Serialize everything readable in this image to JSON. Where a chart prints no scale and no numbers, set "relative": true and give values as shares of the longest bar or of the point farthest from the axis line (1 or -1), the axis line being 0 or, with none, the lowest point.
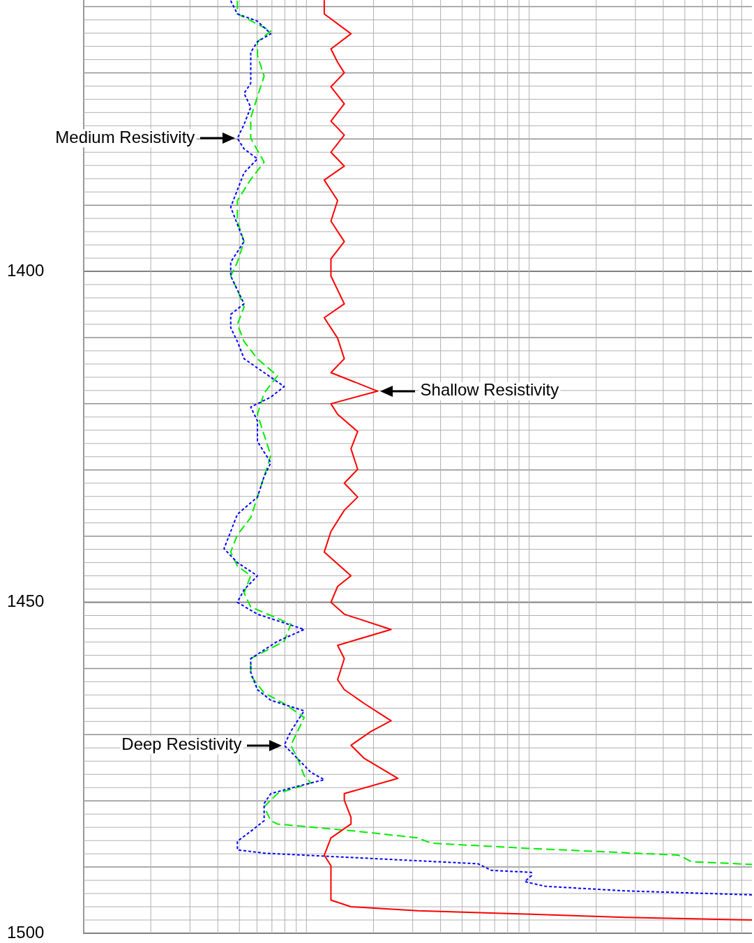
{
  "chart_data": {
    "type": "line",
    "orientation": "horizontal",
    "relative": true,
    "ylim": [
      1500,
      1359
    ],
    "yticks": [
      1400,
      1450,
      1500
    ],
    "grid": true,
    "legend": false,
    "marker": "none",
    "annotations": [
      {
        "text": "Medium Resistivity",
        "x": 0.23,
        "y": 1379.9
      },
      {
        "text": "Shallow Resistivity",
        "x": 0.44,
        "y": 1418.1
      },
      {
        "text": "Deep Resistivity",
        "x": 0.3,
        "y": 1471.6
      }
    ],
    "series": [
      {
        "color": "#ff0000",
        "line_style": "solid",
        "x": [
          1359.1,
          1361.1,
          1364.1,
          1366.4,
          1368.4,
          1370.0,
          1372.1,
          1374.7,
          1377.3,
          1379.4,
          1382.0,
          1384.1,
          1386.2,
          1389.3,
          1392.4,
          1395.5,
          1398.1,
          1400.7,
          1404.9,
          1407.0,
          1410.1,
          1413.2,
          1415.3,
          1418.1,
          1420.0,
          1421.6,
          1424.2,
          1426.8,
          1429.9,
          1432.0,
          1434.1,
          1436.1,
          1439.3,
          1442.4,
          1446.0,
          1447.6,
          1450.0,
          1451.8,
          1454.1,
          1456.5,
          1458.5,
          1461.7,
          1463.2,
          1465.3,
          1467.9,
          1469.5,
          1471.6,
          1473.6,
          1476.6,
          1478.9,
          1479.9,
          1482.5,
          1483.5,
          1485.6,
          1488.2,
          1489.8,
          1491.9,
          1493.4,
          1495.0,
          1496.0,
          1496.6,
          1497.1,
          1497.6,
          1498.0
        ],
        "values": [
          0.36,
          0.36,
          0.4,
          0.37,
          0.38,
          0.39,
          0.37,
          0.39,
          0.37,
          0.39,
          0.37,
          0.39,
          0.36,
          0.38,
          0.37,
          0.39,
          0.37,
          0.37,
          0.39,
          0.36,
          0.38,
          0.39,
          0.37,
          0.44,
          0.37,
          0.38,
          0.41,
          0.4,
          0.41,
          0.39,
          0.41,
          0.39,
          0.37,
          0.36,
          0.4,
          0.38,
          0.37,
          0.39,
          0.46,
          0.38,
          0.39,
          0.38,
          0.39,
          0.42,
          0.46,
          0.43,
          0.4,
          0.42,
          0.47,
          0.39,
          0.39,
          0.4,
          0.4,
          0.37,
          0.36,
          0.37,
          0.37,
          0.37,
          0.37,
          0.4,
          0.5,
          0.66,
          0.81,
          1.0
        ]
      },
      {
        "color": "#0000ff",
        "line_style": "dotted",
        "x": [
          1359.1,
          1361.1,
          1362.2,
          1364.1,
          1365.3,
          1366.9,
          1369.5,
          1371.6,
          1373.1,
          1375.2,
          1377.8,
          1379.9,
          1381.5,
          1383.0,
          1385.1,
          1387.7,
          1390.3,
          1392.9,
          1395.5,
          1398.6,
          1400.7,
          1402.8,
          1404.9,
          1406.5,
          1408.5,
          1410.6,
          1413.2,
          1415.3,
          1417.4,
          1419.0,
          1420.5,
          1422.6,
          1425.7,
          1428.9,
          1431.0,
          1434.1,
          1436.7,
          1439.3,
          1441.9,
          1444.0,
          1446.0,
          1448.1,
          1450.0,
          1451.8,
          1454.1,
          1455.9,
          1458.5,
          1460.6,
          1463.2,
          1464.8,
          1466.4,
          1467.9,
          1469.5,
          1471.6,
          1473.6,
          1475.7,
          1476.8,
          1477.8,
          1478.9,
          1480.4,
          1483.0,
          1484.6,
          1486.1,
          1487.4,
          1487.9,
          1488.7,
          1489.5,
          1490.5,
          1490.8,
          1491.3,
          1492.2,
          1492.9,
          1493.6,
          1494.2
        ],
        "values": [
          0.22,
          0.23,
          0.26,
          0.28,
          0.26,
          0.25,
          0.25,
          0.25,
          0.24,
          0.25,
          0.24,
          0.23,
          0.24,
          0.26,
          0.24,
          0.23,
          0.22,
          0.23,
          0.24,
          0.22,
          0.22,
          0.23,
          0.24,
          0.22,
          0.22,
          0.23,
          0.24,
          0.27,
          0.3,
          0.28,
          0.25,
          0.26,
          0.26,
          0.28,
          0.27,
          0.26,
          0.23,
          0.22,
          0.21,
          0.23,
          0.26,
          0.24,
          0.23,
          0.26,
          0.33,
          0.29,
          0.25,
          0.25,
          0.26,
          0.28,
          0.33,
          0.32,
          0.31,
          0.3,
          0.32,
          0.34,
          0.36,
          0.32,
          0.28,
          0.27,
          0.27,
          0.25,
          0.23,
          0.23,
          0.27,
          0.43,
          0.59,
          0.61,
          0.67,
          0.67,
          0.66,
          0.69,
          0.81,
          1.0
        ]
      },
      {
        "color": "#00ee00",
        "line_style": "dashed",
        "x": [
          1359.1,
          1361.1,
          1363.7,
          1365.3,
          1367.4,
          1370.5,
          1373.6,
          1376.8,
          1379.9,
          1383.5,
          1386.1,
          1389.3,
          1392.4,
          1395.5,
          1398.6,
          1400.7,
          1402.8,
          1405.4,
          1408.0,
          1410.6,
          1413.2,
          1415.8,
          1418.4,
          1421.6,
          1424.7,
          1427.8,
          1431.0,
          1434.1,
          1437.2,
          1439.8,
          1442.4,
          1444.5,
          1446.0,
          1448.6,
          1450.7,
          1453.3,
          1455.9,
          1458.5,
          1461.1,
          1463.7,
          1465.3,
          1467.4,
          1469.5,
          1471.6,
          1473.6,
          1476.2,
          1477.3,
          1478.9,
          1480.9,
          1483.0,
          1483.5,
          1484.6,
          1485.6,
          1486.4,
          1487.2,
          1488.2,
          1489.2,
          1489.6
        ],
        "values": [
          0.23,
          0.23,
          0.28,
          0.26,
          0.26,
          0.27,
          0.26,
          0.25,
          0.25,
          0.27,
          0.25,
          0.23,
          0.23,
          0.24,
          0.23,
          0.22,
          0.23,
          0.24,
          0.23,
          0.24,
          0.26,
          0.29,
          0.27,
          0.26,
          0.27,
          0.28,
          0.27,
          0.26,
          0.25,
          0.23,
          0.22,
          0.23,
          0.25,
          0.24,
          0.25,
          0.31,
          0.3,
          0.25,
          0.25,
          0.27,
          0.3,
          0.33,
          0.32,
          0.31,
          0.32,
          0.33,
          0.34,
          0.29,
          0.27,
          0.28,
          0.29,
          0.41,
          0.5,
          0.52,
          0.67,
          0.89,
          0.91,
          1.0
        ]
      }
    ]
  }
}
